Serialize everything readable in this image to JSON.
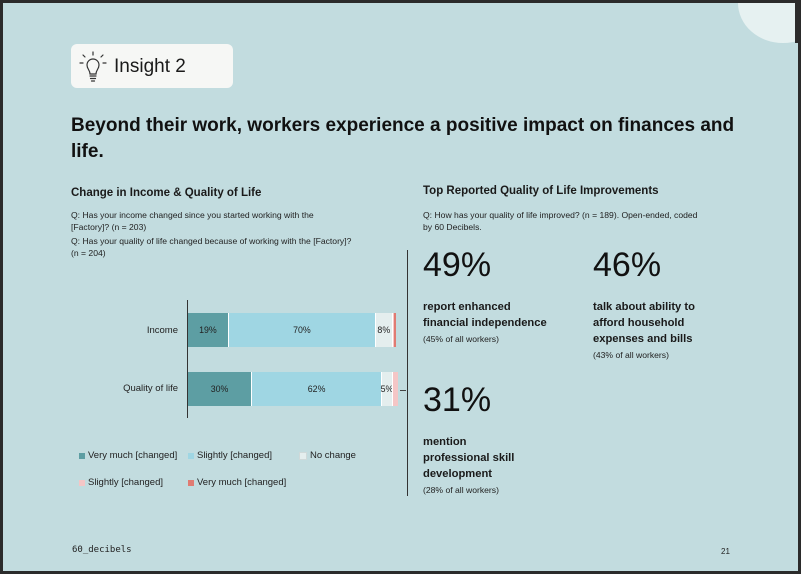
{
  "badge": {
    "label": "Insight 2"
  },
  "headline": "Beyond their work, workers experience a positive impact on finances and life.",
  "left": {
    "title": "Change in Income & Quality of Life",
    "questions": [
      "Q: Has your income changed since you started working with the",
      "[Factory]? (n = 203)",
      "Q: Has your quality of life changed because of working with the [Factory]?",
      "(n = 204)"
    ]
  },
  "right": {
    "title": "Top Reported Quality of Life Improvements",
    "questions": [
      "Q: How has your quality of life improved? (n = 189). Open-ended, coded",
      "by 60 Decibels."
    ]
  },
  "chart_data": {
    "type": "bar",
    "orientation": "horizontal",
    "stacked": true,
    "categories": [
      "Income",
      "Quality of life"
    ],
    "series": [
      {
        "name": "Very much [changed]",
        "values": [
          19,
          30
        ],
        "labels": [
          "19%",
          "30%"
        ],
        "color": "#5d9ea3"
      },
      {
        "name": "Slightly [changed]",
        "values": [
          70,
          62
        ],
        "labels": [
          "70%",
          "62%"
        ],
        "color": "#9fd6e3"
      },
      {
        "name": "No change",
        "values": [
          8,
          5
        ],
        "labels": [
          "8%",
          "5%"
        ],
        "color": "#e4eeee"
      },
      {
        "name": "Slightly [changed]",
        "values": [
          1,
          3
        ],
        "labels": [
          "",
          ""
        ],
        "color": "#f4c6c6"
      },
      {
        "name": "Very much [changed]",
        "values": [
          1,
          0
        ],
        "labels": [
          "",
          ""
        ],
        "color": "#e07b72"
      }
    ],
    "legend": [
      "Very much [changed]",
      "Slightly [changed]",
      "No change",
      "Slightly [changed]",
      "Very much [changed]"
    ],
    "legend_position": "bottom"
  },
  "stats": [
    {
      "value": "49%",
      "lines": [
        "report enhanced",
        "financial independence"
      ],
      "sub": "(45% of all workers)"
    },
    {
      "value": "46%",
      "lines": [
        "talk about ability to",
        "afford household",
        "expenses and bills"
      ],
      "sub": "(43% of all workers)"
    },
    {
      "value": "31%",
      "lines": [
        "mention",
        "professional skill",
        "development"
      ],
      "sub": "(28% of all workers)"
    }
  ],
  "footer": {
    "logo": "60_decibels",
    "page": "21"
  },
  "colors": {
    "background": "#c2dcdf",
    "badge": "#f6f7f5"
  },
  "icons": {
    "badge_icon": "lightbulb-icon"
  }
}
